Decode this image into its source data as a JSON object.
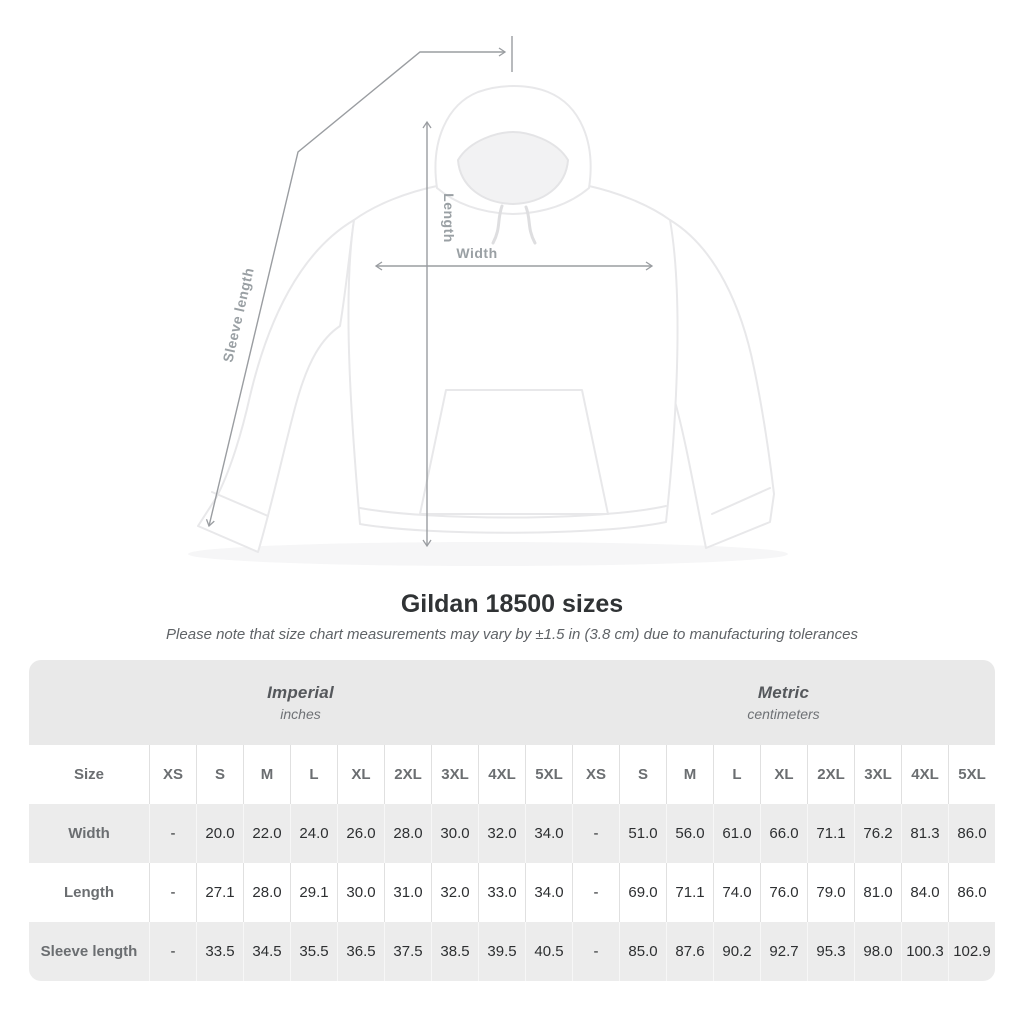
{
  "diagram": {
    "labels": {
      "length": "Length",
      "width": "Width",
      "sleeve_length": "Sleeve length"
    }
  },
  "chart_data": {
    "type": "table",
    "title": "Gildan 18500 sizes",
    "subtitle": "Please note that size chart measurements may vary by ±1.5 in (3.8 cm) due to manufacturing tolerances",
    "size_header": "Size",
    "sizes": [
      "XS",
      "S",
      "M",
      "L",
      "XL",
      "2XL",
      "3XL",
      "4XL",
      "5XL"
    ],
    "groups": [
      {
        "label": "Imperial",
        "unit": "inches"
      },
      {
        "label": "Metric",
        "unit": "centimeters"
      }
    ],
    "rows": [
      {
        "label": "Width",
        "imperial": [
          "-",
          "20.0",
          "22.0",
          "24.0",
          "26.0",
          "28.0",
          "30.0",
          "32.0",
          "34.0"
        ],
        "metric": [
          "-",
          "51.0",
          "56.0",
          "61.0",
          "66.0",
          "71.1",
          "76.2",
          "81.3",
          "86.0"
        ]
      },
      {
        "label": "Length",
        "imperial": [
          "-",
          "27.1",
          "28.0",
          "29.1",
          "30.0",
          "31.0",
          "32.0",
          "33.0",
          "34.0"
        ],
        "metric": [
          "-",
          "69.0",
          "71.1",
          "74.0",
          "76.0",
          "79.0",
          "81.0",
          "84.0",
          "86.0"
        ]
      },
      {
        "label": "Sleeve length",
        "imperial": [
          "-",
          "33.5",
          "34.5",
          "35.5",
          "36.5",
          "37.5",
          "38.5",
          "39.5",
          "40.5"
        ],
        "metric": [
          "-",
          "85.0",
          "87.6",
          "90.2",
          "92.7",
          "95.3",
          "98.0",
          "100.3",
          "102.9"
        ]
      }
    ]
  },
  "colors": {
    "band_bg": "#e9e9e9",
    "row_alt_bg": "#ececec",
    "separator": "#e0e0e0",
    "header_text": "#6b6e71",
    "data_text": "#2d2f31",
    "title_text": "#303335",
    "subtitle_text": "#5f6367",
    "measure_line": "#9a9da1",
    "measure_label": "#9aa0a4",
    "garment_outline": "#e8e8ea"
  }
}
